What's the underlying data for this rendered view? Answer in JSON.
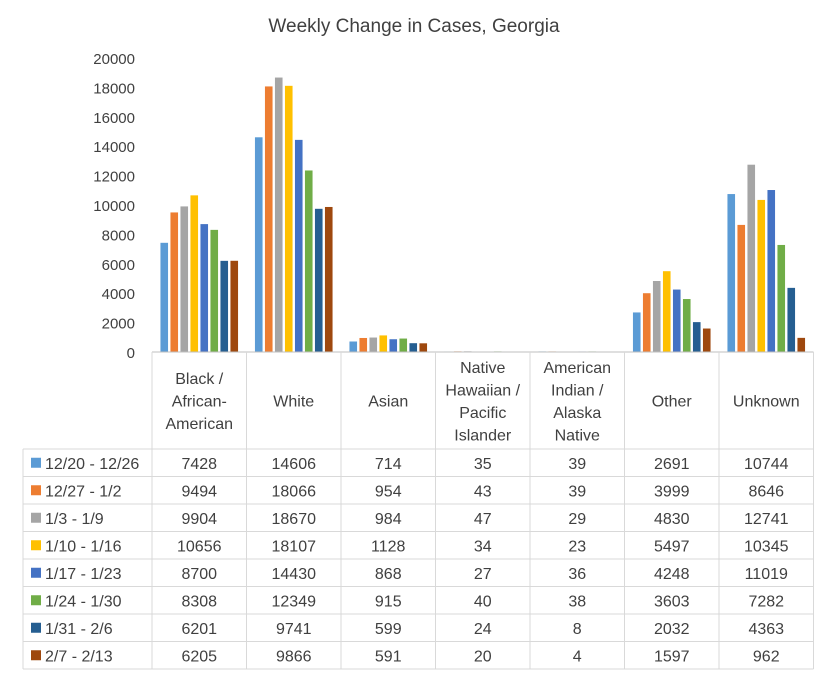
{
  "chart_data": {
    "type": "bar",
    "title": "Weekly Change in Cases, Georgia",
    "xlabel": "",
    "ylabel": "",
    "ylim": [
      0,
      20000
    ],
    "yticks": [
      "0",
      "2000",
      "4000",
      "6000",
      "8000",
      "10000",
      "12000",
      "14000",
      "16000",
      "18000",
      "20000"
    ],
    "grid": false,
    "legend_placement": "left of data table",
    "categories": [
      [
        "Black /",
        "African-",
        "American"
      ],
      [
        "White"
      ],
      [
        "Asian"
      ],
      [
        "Native",
        "Hawaiian /",
        "Pacific",
        "Islander"
      ],
      [
        "American",
        "Indian /",
        "Alaska",
        "Native"
      ],
      [
        "Other"
      ],
      [
        "Unknown"
      ]
    ],
    "series": [
      {
        "name": "12/20 - 12/26",
        "color": "#5B9BD5",
        "values": [
          7428,
          14606,
          714,
          35,
          39,
          2691,
          10744
        ]
      },
      {
        "name": "12/27 - 1/2",
        "color": "#ED7D31",
        "values": [
          9494,
          18066,
          954,
          43,
          39,
          3999,
          8646
        ]
      },
      {
        "name": "1/3 - 1/9",
        "color": "#A5A5A5",
        "values": [
          9904,
          18670,
          984,
          47,
          29,
          4830,
          12741
        ]
      },
      {
        "name": "1/10 - 1/16",
        "color": "#FFC000",
        "values": [
          10656,
          18107,
          1128,
          34,
          23,
          5497,
          10345
        ]
      },
      {
        "name": "1/17 - 1/23",
        "color": "#4472C4",
        "values": [
          8700,
          14430,
          868,
          27,
          36,
          4248,
          11019
        ]
      },
      {
        "name": "1/24 - 1/30",
        "color": "#70AD47",
        "values": [
          8308,
          12349,
          915,
          40,
          38,
          3603,
          7282
        ]
      },
      {
        "name": "1/31 - 2/6",
        "color": "#255E91",
        "values": [
          6201,
          9741,
          599,
          24,
          8,
          2032,
          4363
        ]
      },
      {
        "name": "2/7 - 2/13",
        "color": "#9E480E",
        "values": [
          6205,
          9866,
          591,
          20,
          4,
          1597,
          962
        ]
      }
    ]
  }
}
